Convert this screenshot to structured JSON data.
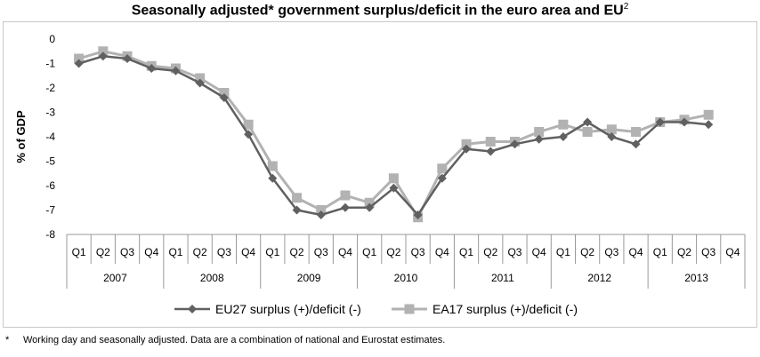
{
  "title_main": "Seasonally adjusted* government surplus/deficit in the euro area and EU",
  "title_superscript": "2",
  "footnote": {
    "marker": "*",
    "text": "Working day and seasonally adjusted. Data are a combination of national and Eurostat estimates."
  },
  "chart_data": {
    "type": "line",
    "ylabel": "% of GDP",
    "ylim": [
      -8,
      0
    ],
    "yticks": [
      0,
      -1,
      -2,
      -3,
      -4,
      -5,
      -6,
      -7,
      -8
    ],
    "grid": false,
    "legend_position": "bottom",
    "quarters": [
      "Q1",
      "Q2",
      "Q3",
      "Q4",
      "Q1",
      "Q2",
      "Q3",
      "Q4",
      "Q1",
      "Q2",
      "Q3",
      "Q4",
      "Q1",
      "Q2",
      "Q3",
      "Q4",
      "Q1",
      "Q2",
      "Q3",
      "Q4",
      "Q1",
      "Q2",
      "Q3",
      "Q4",
      "Q1",
      "Q2",
      "Q3",
      "Q4"
    ],
    "years": [
      "2007",
      "2008",
      "2009",
      "2010",
      "2011",
      "2012",
      "2013"
    ],
    "series": [
      {
        "name": "EU27 surplus (+)/deficit (-)",
        "color": "#606060",
        "marker": "diamond",
        "values": [
          -1.0,
          -0.7,
          -0.8,
          -1.2,
          -1.3,
          -1.8,
          -2.4,
          -3.9,
          -5.7,
          -7.0,
          -7.2,
          -6.9,
          -6.9,
          -6.1,
          -7.2,
          -5.7,
          -4.5,
          -4.6,
          -4.3,
          -4.1,
          -4.0,
          -3.4,
          -4.0,
          -4.3,
          -3.4,
          -3.4,
          -3.5,
          null
        ]
      },
      {
        "name": "EA17 surplus (+)/deficit (-)",
        "color": "#b2b2b2",
        "marker": "square",
        "values": [
          -0.8,
          -0.5,
          -0.7,
          -1.1,
          -1.2,
          -1.6,
          -2.2,
          -3.5,
          -5.2,
          -6.5,
          -7.0,
          -6.4,
          -6.7,
          -5.7,
          -7.3,
          -5.3,
          -4.3,
          -4.2,
          -4.2,
          -3.8,
          -3.5,
          -3.8,
          -3.7,
          -3.8,
          -3.4,
          -3.3,
          -3.1,
          null
        ]
      }
    ]
  }
}
